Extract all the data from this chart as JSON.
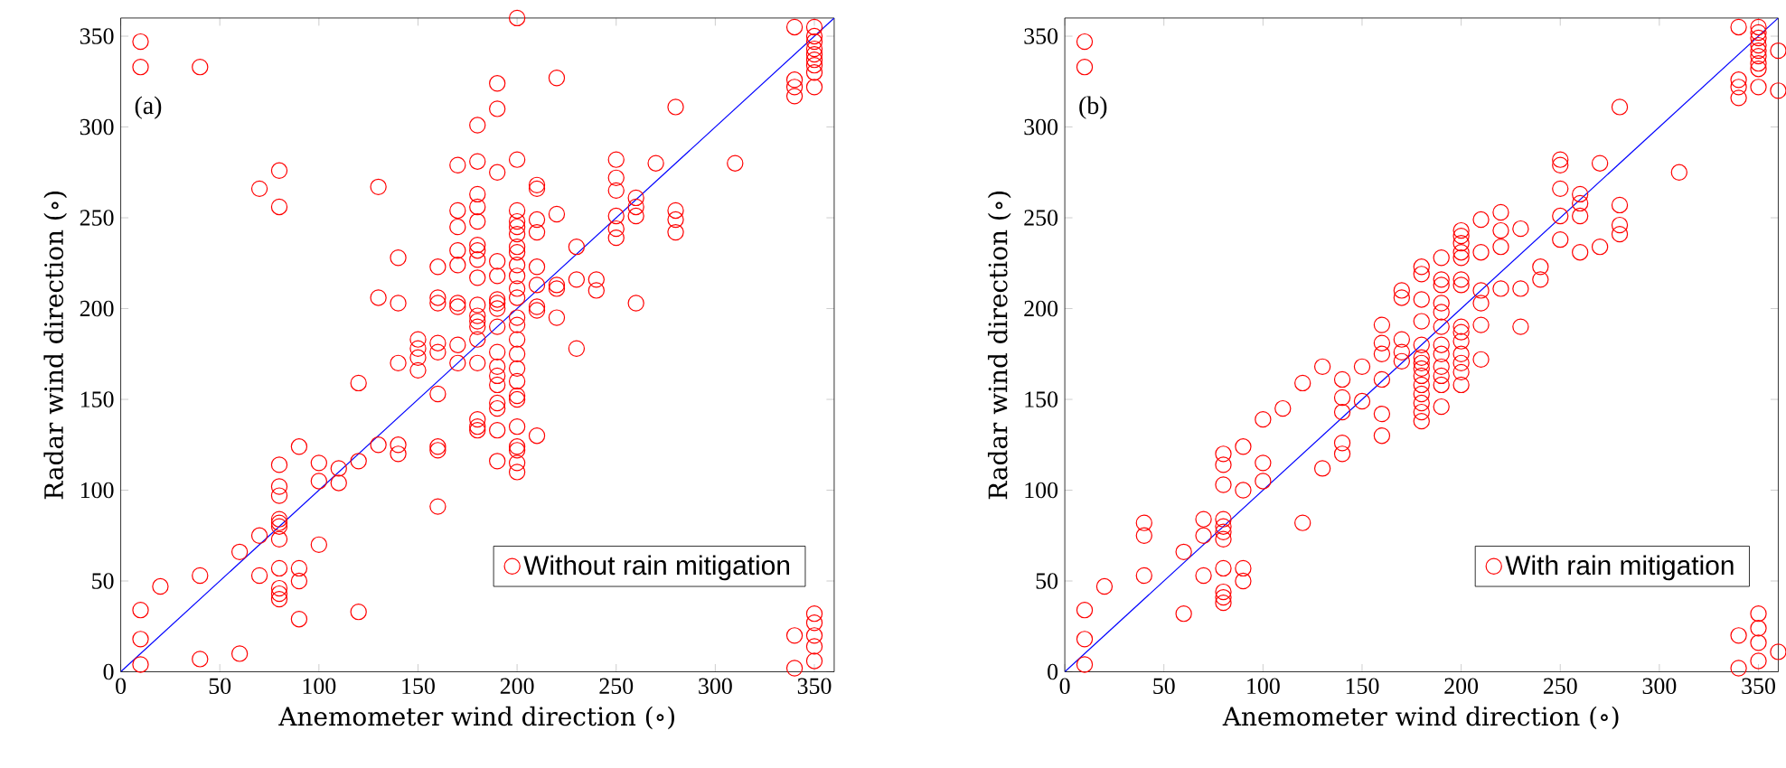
{
  "chart_data": [
    {
      "type": "scatter",
      "xlabel": "Anemometer wind direction (∘)",
      "ylabel": "Radar wind direction (∘)",
      "xlim": [
        0,
        360
      ],
      "ylim": [
        0,
        360
      ],
      "xticks": [
        0,
        50,
        100,
        150,
        200,
        250,
        300,
        350
      ],
      "yticks": [
        0,
        50,
        100,
        150,
        200,
        250,
        300,
        350
      ],
      "legend": "bottom right",
      "marker": "circle",
      "annotations": [
        "(a)"
      ],
      "series": [
        {
          "name": "Without rain mitigation",
          "color": "#ff0000",
          "x": [
            10,
            10,
            40,
            200,
            190,
            220,
            190,
            180,
            280,
            310,
            70,
            80,
            80,
            130,
            170,
            180,
            190,
            200,
            210,
            210,
            250,
            250,
            250,
            270,
            260,
            260,
            260,
            280,
            280,
            280,
            250,
            250,
            250,
            230,
            220,
            210,
            210,
            180,
            180,
            180,
            180,
            180,
            180,
            180,
            180,
            180,
            180,
            180,
            180,
            180,
            180,
            180,
            180,
            170,
            170,
            170,
            170,
            170,
            170,
            170,
            170,
            190,
            190,
            190,
            190,
            190,
            190,
            190,
            190,
            190,
            190,
            190,
            190,
            190,
            190,
            200,
            200,
            200,
            200,
            200,
            200,
            200,
            200,
            200,
            200,
            200,
            200,
            200,
            200,
            200,
            200,
            200,
            200,
            200,
            200,
            200,
            200,
            200,
            210,
            210,
            210,
            210,
            210,
            220,
            220,
            220,
            230,
            230,
            240,
            240,
            260,
            160,
            160,
            160,
            160,
            160,
            160,
            160,
            160,
            160,
            150,
            150,
            150,
            150,
            140,
            140,
            140,
            140,
            140,
            130,
            130,
            120,
            120,
            120,
            110,
            110,
            100,
            100,
            100,
            90,
            90,
            90,
            90,
            80,
            80,
            80,
            80,
            80,
            80,
            80,
            80,
            80,
            80,
            80,
            70,
            70,
            60,
            60,
            40,
            40,
            20,
            10,
            10,
            10,
            340,
            340,
            340,
            340,
            340,
            340,
            350,
            350,
            350,
            350,
            350,
            350,
            350,
            350,
            350,
            350,
            350,
            350,
            350,
            350
          ],
          "values": [
            347,
            333,
            333,
            360,
            324,
            327,
            310,
            301,
            311,
            280,
            266,
            276,
            256,
            267,
            279,
            281,
            275,
            282,
            268,
            266,
            282,
            272,
            265,
            280,
            261,
            256,
            251,
            254,
            249,
            242,
            251,
            244,
            239,
            234,
            252,
            249,
            242,
            263,
            256,
            248,
            235,
            232,
            227,
            217,
            202,
            196,
            193,
            190,
            183,
            170,
            139,
            135,
            133,
            254,
            245,
            232,
            224,
            203,
            201,
            180,
            170,
            226,
            218,
            205,
            203,
            200,
            190,
            176,
            168,
            163,
            158,
            148,
            145,
            133,
            116,
            254,
            248,
            245,
            241,
            234,
            231,
            224,
            218,
            211,
            206,
            195,
            191,
            183,
            175,
            167,
            160,
            152,
            150,
            135,
            124,
            122,
            115,
            110,
            223,
            213,
            201,
            199,
            130,
            213,
            211,
            195,
            216,
            178,
            216,
            210,
            203,
            223,
            206,
            203,
            181,
            176,
            153,
            124,
            122,
            91,
            183,
            178,
            173,
            166,
            228,
            203,
            170,
            125,
            120,
            206,
            125,
            159,
            116,
            33,
            112,
            104,
            115,
            105,
            70,
            124,
            57,
            50,
            29,
            114,
            102,
            97,
            84,
            82,
            80,
            73,
            57,
            46,
            43,
            40,
            75,
            53,
            66,
            10,
            53,
            7,
            47,
            34,
            18,
            4,
            355,
            326,
            322,
            317,
            20,
            2,
            355,
            350,
            347,
            343,
            340,
            337,
            334,
            330,
            322,
            32,
            27,
            20,
            14,
            6
          ]
        },
        {
          "type": "line",
          "color": "#0000ff",
          "marker": "none",
          "x": [
            0,
            360
          ],
          "values": [
            0,
            360
          ]
        }
      ]
    },
    {
      "type": "scatter",
      "xlabel": "Anemometer wind direction (∘)",
      "ylabel": "Radar wind direction (∘)",
      "xlim": [
        0,
        360
      ],
      "ylim": [
        0,
        360
      ],
      "xticks": [
        0,
        50,
        100,
        150,
        200,
        250,
        300,
        350
      ],
      "yticks": [
        0,
        50,
        100,
        150,
        200,
        250,
        300,
        350
      ],
      "legend": "bottom right",
      "marker": "circle",
      "annotations": [
        "(b)"
      ],
      "series": [
        {
          "name": "With rain mitigation",
          "color": "#ff0000",
          "x": [
            10,
            10,
            10,
            10,
            10,
            20,
            40,
            40,
            40,
            60,
            60,
            70,
            70,
            70,
            80,
            80,
            80,
            80,
            80,
            80,
            80,
            80,
            80,
            80,
            80,
            90,
            90,
            90,
            90,
            100,
            100,
            100,
            120,
            120,
            110,
            130,
            130,
            140,
            140,
            140,
            140,
            140,
            150,
            150,
            160,
            160,
            160,
            160,
            160,
            160,
            170,
            170,
            170,
            170,
            170,
            180,
            180,
            180,
            180,
            180,
            180,
            180,
            180,
            180,
            180,
            180,
            180,
            180,
            180,
            190,
            190,
            190,
            190,
            190,
            190,
            190,
            190,
            190,
            190,
            190,
            190,
            200,
            200,
            200,
            200,
            200,
            200,
            200,
            200,
            200,
            200,
            200,
            200,
            200,
            200,
            210,
            210,
            210,
            210,
            210,
            210,
            220,
            220,
            220,
            220,
            230,
            230,
            230,
            240,
            240,
            250,
            250,
            250,
            250,
            250,
            260,
            260,
            260,
            260,
            270,
            270,
            280,
            280,
            280,
            280,
            310,
            340,
            340,
            340,
            340,
            340,
            340,
            350,
            350,
            350,
            350,
            350,
            350,
            350,
            350,
            350,
            350,
            350,
            350,
            350,
            360,
            360,
            360
          ],
          "values": [
            347,
            333,
            34,
            18,
            4,
            47,
            82,
            75,
            53,
            66,
            32,
            84,
            75,
            53,
            120,
            114,
            103,
            84,
            80,
            77,
            73,
            57,
            44,
            41,
            38,
            124,
            100,
            57,
            50,
            139,
            115,
            105,
            159,
            82,
            145,
            168,
            112,
            161,
            151,
            143,
            126,
            120,
            168,
            149,
            191,
            181,
            175,
            161,
            142,
            130,
            210,
            206,
            183,
            176,
            171,
            223,
            219,
            205,
            193,
            180,
            173,
            170,
            167,
            163,
            158,
            153,
            148,
            143,
            138,
            228,
            216,
            213,
            203,
            198,
            190,
            180,
            175,
            168,
            163,
            158,
            146,
            243,
            240,
            236,
            231,
            228,
            216,
            213,
            190,
            187,
            182,
            175,
            170,
            165,
            158,
            249,
            231,
            210,
            203,
            191,
            172,
            253,
            243,
            234,
            211,
            244,
            211,
            190,
            223,
            216,
            282,
            279,
            266,
            251,
            238,
            263,
            258,
            251,
            231,
            280,
            234,
            311,
            257,
            246,
            241,
            275,
            355,
            326,
            322,
            316,
            20,
            2,
            355,
            352,
            349,
            345,
            342,
            339,
            335,
            332,
            322,
            32,
            24,
            16,
            6,
            342,
            320,
            11
          ]
        },
        {
          "type": "line",
          "color": "#0000ff",
          "marker": "none",
          "x": [
            0,
            360
          ],
          "values": [
            0,
            360
          ]
        }
      ]
    }
  ]
}
